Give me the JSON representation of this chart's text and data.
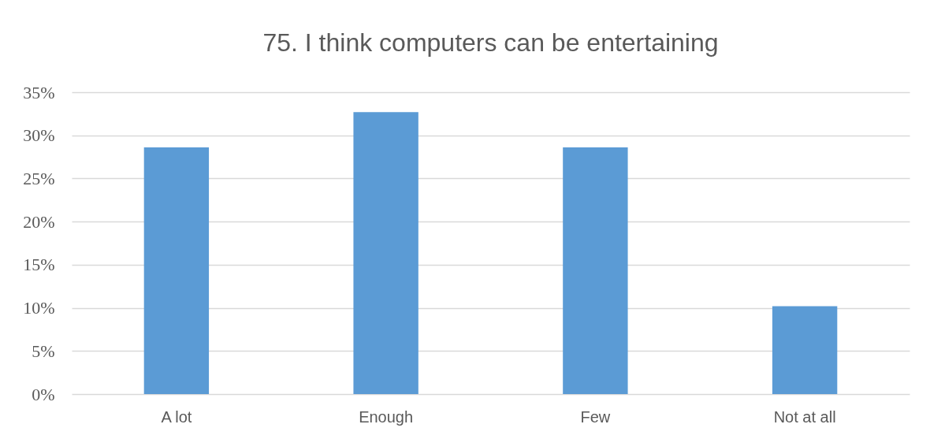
{
  "chart_data": {
    "type": "bar",
    "title": "75. I think computers can be entertaining",
    "categories": [
      "A lot",
      "Enough",
      "Few",
      "Not at all"
    ],
    "values": [
      28.6,
      32.7,
      28.6,
      10.2
    ],
    "color": "#5b9bd5",
    "ylim": [
      0,
      35
    ],
    "yticks": [
      {
        "value": 0,
        "label": "0%"
      },
      {
        "value": 5,
        "label": "5%"
      },
      {
        "value": 10,
        "label": "10%"
      },
      {
        "value": 15,
        "label": "15%"
      },
      {
        "value": 20,
        "label": "20%"
      },
      {
        "value": 25,
        "label": "25%"
      },
      {
        "value": 30,
        "label": "30%"
      },
      {
        "value": 35,
        "label": "35%"
      }
    ],
    "grid": "y"
  }
}
